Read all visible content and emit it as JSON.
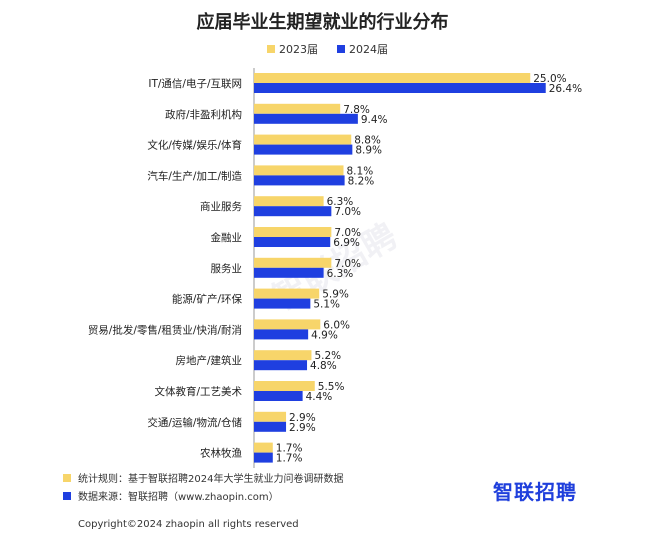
{
  "chart_data": {
    "type": "bar",
    "orientation": "horizontal",
    "title": "应届毕业生期望就业的行业分布",
    "categories": [
      "IT/通信/电子/互联网",
      "政府/非盈利机构",
      "文化/传媒/娱乐/体育",
      "汽车/生产/加工/制造",
      "商业服务",
      "金融业",
      "服务业",
      "能源/矿产/环保",
      "贸易/批发/零售/租赁业/快消/耐消",
      "房地产/建筑业",
      "文体教育/工艺美术",
      "交通/运输/物流/仓储",
      "农林牧渔"
    ],
    "series": [
      {
        "name": "2023届",
        "color": "#f7d56a",
        "values": [
          25.0,
          7.8,
          8.8,
          8.1,
          6.3,
          7.0,
          7.0,
          5.9,
          6.0,
          5.2,
          5.5,
          2.9,
          1.7
        ]
      },
      {
        "name": "2024届",
        "color": "#1f3fe0",
        "values": [
          26.4,
          9.4,
          8.9,
          8.2,
          7.0,
          6.9,
          6.3,
          5.1,
          4.9,
          4.8,
          4.4,
          2.9,
          1.7
        ]
      }
    ],
    "value_suffix": "%",
    "xlim": [
      0,
      27
    ],
    "legend_position": "top",
    "grid": false
  },
  "footer": {
    "note_label": "统计规则：基于智联招聘2024年大学生就业力问卷调研数据",
    "source_label": "数据来源：智联招聘（www.zhaopin.com）",
    "brand": "智联招聘",
    "copyright": "Copyright©2024 zhaopin all rights reserved"
  },
  "watermark": "智联招聘"
}
